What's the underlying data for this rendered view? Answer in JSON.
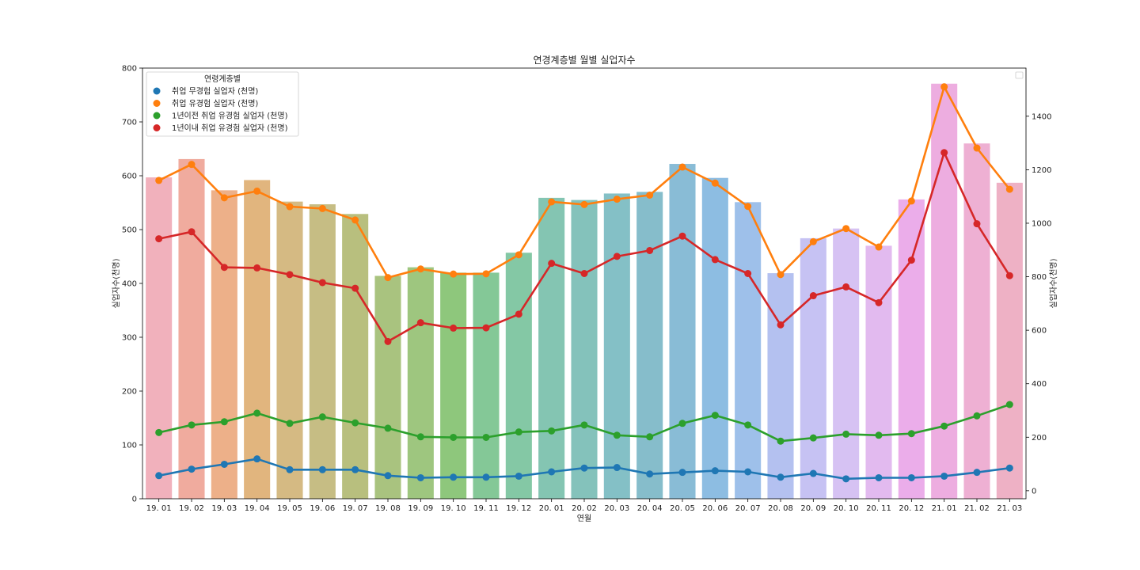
{
  "chart_data": {
    "type": "bar",
    "title": "연경계층별 월별 실업자수",
    "xlabel": "연월",
    "ylabel_left": "실업자수(천명)",
    "ylabel_right": "실업자수(천명)",
    "categories": [
      "19. 01",
      "19. 02",
      "19. 03",
      "19. 04",
      "19. 05",
      "19. 06",
      "19. 07",
      "19. 08",
      "19. 09",
      "19. 10",
      "19. 11",
      "19. 12",
      "20. 01",
      "20. 02",
      "20. 03",
      "20. 04",
      "20. 05",
      "20. 06",
      "20. 07",
      "20. 08",
      "20. 09",
      "20. 10",
      "20. 11",
      "20. 12",
      "21. 01",
      "21. 02",
      "21. 03"
    ],
    "ylim_left": [
      0,
      800
    ],
    "yticks_left": [
      0,
      100,
      200,
      300,
      400,
      500,
      600,
      700,
      800
    ],
    "ylim_right": [
      -30,
      1580
    ],
    "yticks_right": [
      0,
      200,
      400,
      600,
      800,
      1000,
      1200,
      1400
    ],
    "bars": {
      "axis": "left",
      "values": [
        597,
        631,
        573,
        592,
        552,
        547,
        529,
        414,
        430,
        420,
        420,
        457,
        559,
        555,
        567,
        570,
        622,
        596,
        551,
        419,
        484,
        502,
        470,
        556,
        771,
        660,
        587
      ],
      "colors": [
        "#f1b1bc",
        "#f0ab9e",
        "#edb089",
        "#e1b57e",
        "#d5ba83",
        "#c6bd84",
        "#b8bf7e",
        "#a9c37f",
        "#9ec67f",
        "#8ec77c",
        "#84c897",
        "#84c8a5",
        "#84c5b2",
        "#84c2bb",
        "#84c0c6",
        "#86bdcb",
        "#89bcd6",
        "#8dbde2",
        "#9ec0ea",
        "#b4c1f0",
        "#c6c2f3",
        "#d6c2f3",
        "#e2baef",
        "#ebadea",
        "#edade0",
        "#eeb0d3",
        "#eeb1c5"
      ]
    },
    "series": [
      {
        "name": "취업 무경험 실업자 (천명)",
        "color": "#1f77b4",
        "axis": "left",
        "values": [
          43,
          55,
          64,
          74,
          54,
          54,
          54,
          43,
          39,
          40,
          40,
          42,
          50,
          57,
          58,
          46,
          49,
          52,
          50,
          40,
          47,
          37,
          39,
          39,
          42,
          49,
          57
        ]
      },
      {
        "name": "취업 유경험 실업자 (천명)",
        "color": "#ff7f0e",
        "axis": "right",
        "values": [
          1160,
          1220,
          1095,
          1120,
          1062,
          1055,
          1012,
          797,
          829,
          810,
          811,
          882,
          1080,
          1070,
          1090,
          1105,
          1210,
          1150,
          1063,
          808,
          931,
          980,
          911,
          1083,
          1510,
          1281,
          1127
        ]
      },
      {
        "name": "1년이전 취업 유경험 실업자 (천명)",
        "color": "#2ca02c",
        "axis": "left",
        "values": [
          123,
          137,
          143,
          159,
          140,
          152,
          141,
          131,
          115,
          114,
          114,
          124,
          126,
          137,
          118,
          115,
          140,
          155,
          137,
          107,
          113,
          120,
          118,
          121,
          135,
          154,
          175
        ]
      },
      {
        "name": "1년이내 취업 유경험 실업자 (천명)",
        "color": "#d62728",
        "axis": "right",
        "values": [
          942,
          968,
          835,
          833,
          808,
          778,
          757,
          558,
          628,
          608,
          609,
          660,
          850,
          812,
          876,
          898,
          952,
          864,
          812,
          620,
          729,
          762,
          703,
          862,
          1264,
          998,
          804
        ]
      }
    ],
    "legend": {
      "title": "연령계층별",
      "position": "upper-left"
    },
    "grid": false
  }
}
